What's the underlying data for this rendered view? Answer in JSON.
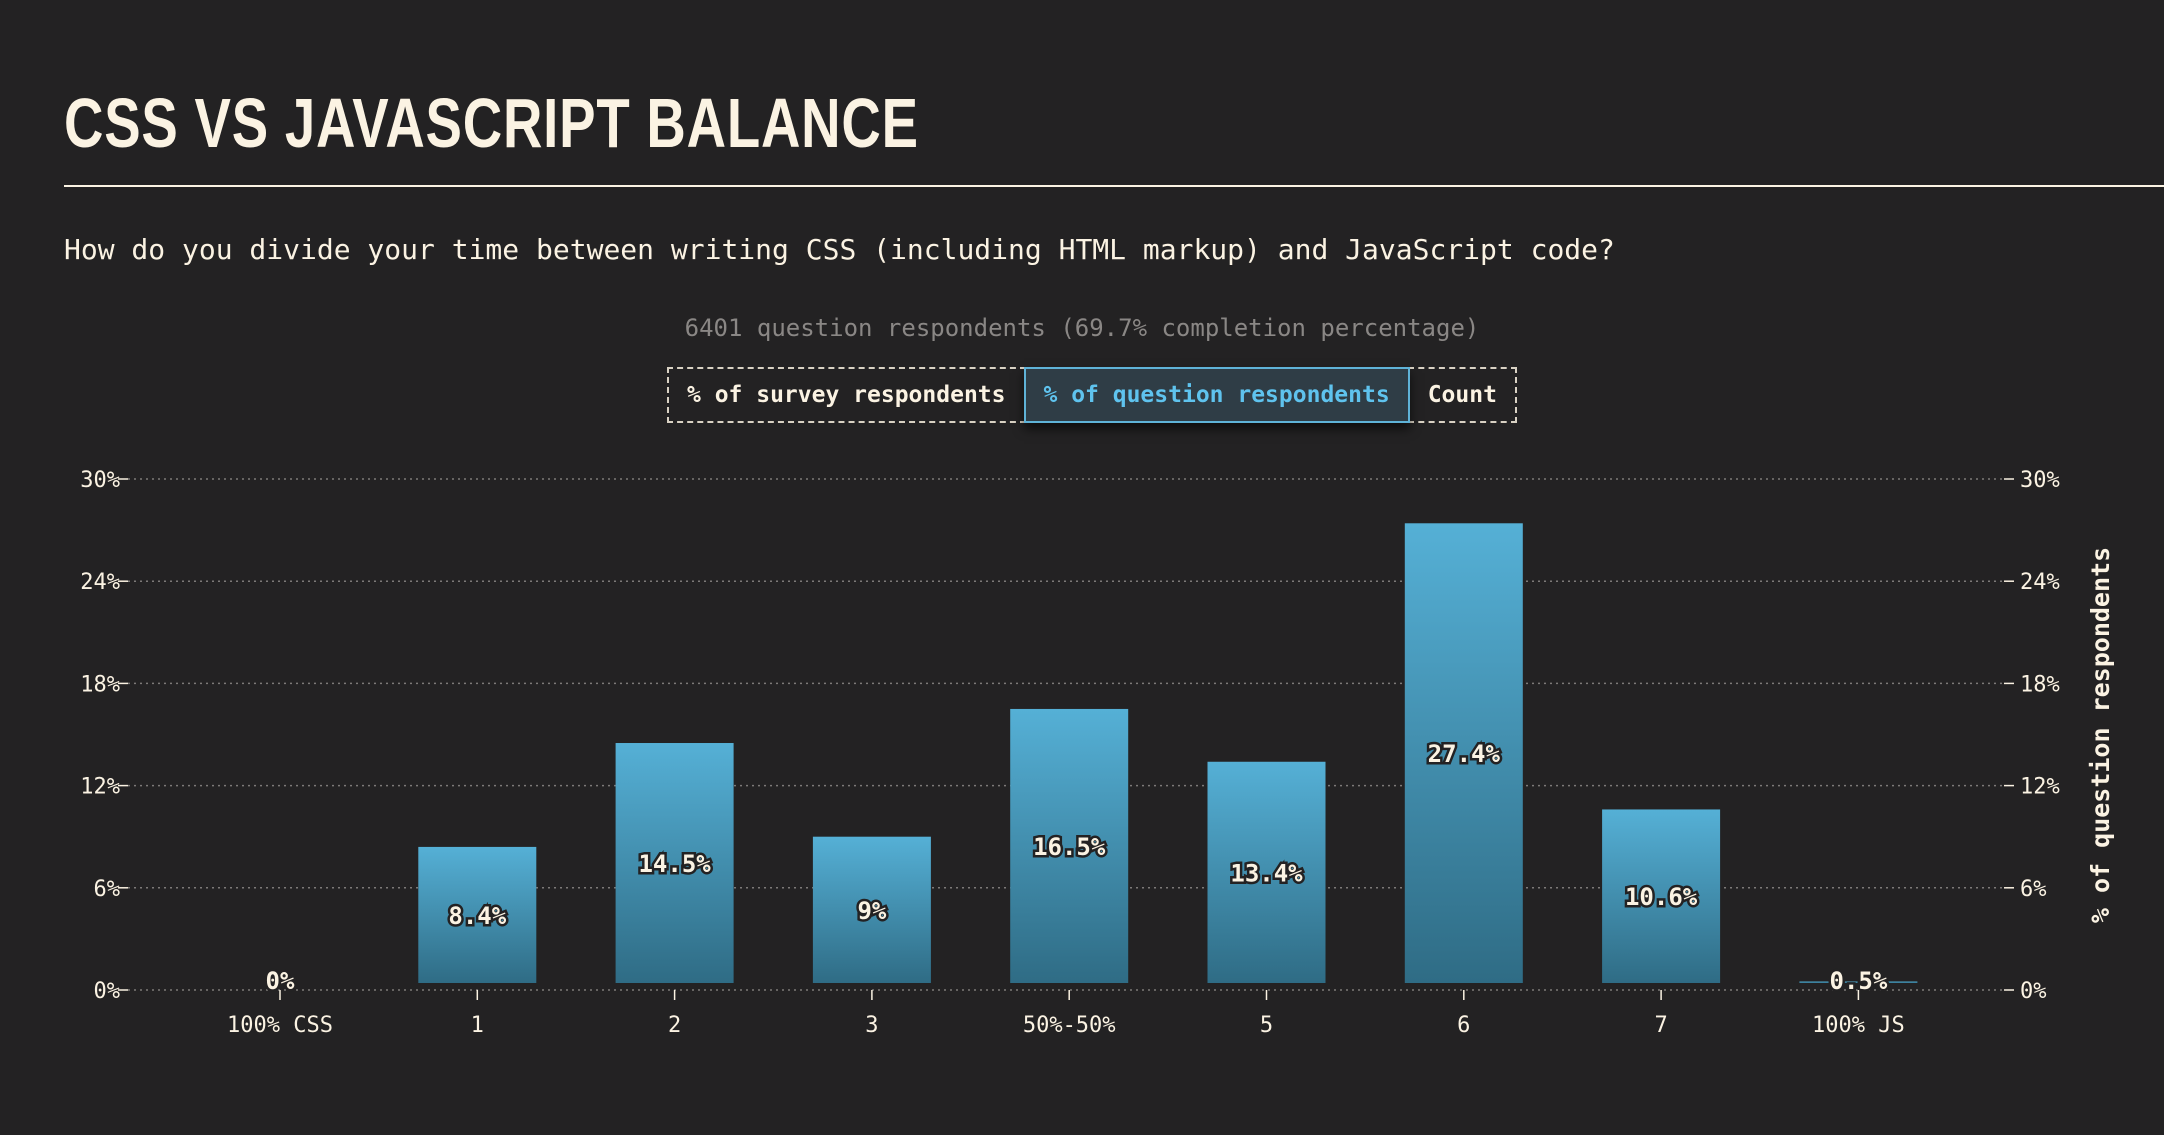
{
  "header": {
    "title": "CSS vs JavaScript Balance",
    "question": "How do you divide your time between writing CSS (including HTML markup) and JavaScript code?",
    "respondents": "6401 question respondents (69.7% completion percentage)"
  },
  "mode_switch": {
    "options": [
      {
        "label": "% of survey respondents",
        "active": false
      },
      {
        "label": "% of question respondents",
        "active": true
      },
      {
        "label": "Count",
        "active": false
      }
    ]
  },
  "colors": {
    "background": "#232223",
    "text": "#fbf3e3",
    "muted": "#8a8785",
    "bar_top": "#55b0d6",
    "bar_bottom": "#2f6c85",
    "accent": "#5fc3ee"
  },
  "chart_data": {
    "type": "bar",
    "categories": [
      "100% CSS",
      "1",
      "2",
      "3",
      "50%-50%",
      "5",
      "6",
      "7",
      "100% JS"
    ],
    "values": [
      0,
      8.4,
      14.5,
      9,
      16.5,
      13.4,
      27.4,
      10.6,
      0.5
    ],
    "value_labels": [
      "0%",
      "8.4%",
      "14.5%",
      "9%",
      "16.5%",
      "13.4%",
      "27.4%",
      "10.6%",
      "0.5%"
    ],
    "ylim": [
      0,
      30
    ],
    "yticks": [
      0,
      6,
      12,
      18,
      24,
      30
    ],
    "ytick_labels": [
      "0%",
      "6%",
      "12%",
      "18%",
      "24%",
      "30%"
    ],
    "ylabel_right": "% of question respondents",
    "grid": true
  }
}
